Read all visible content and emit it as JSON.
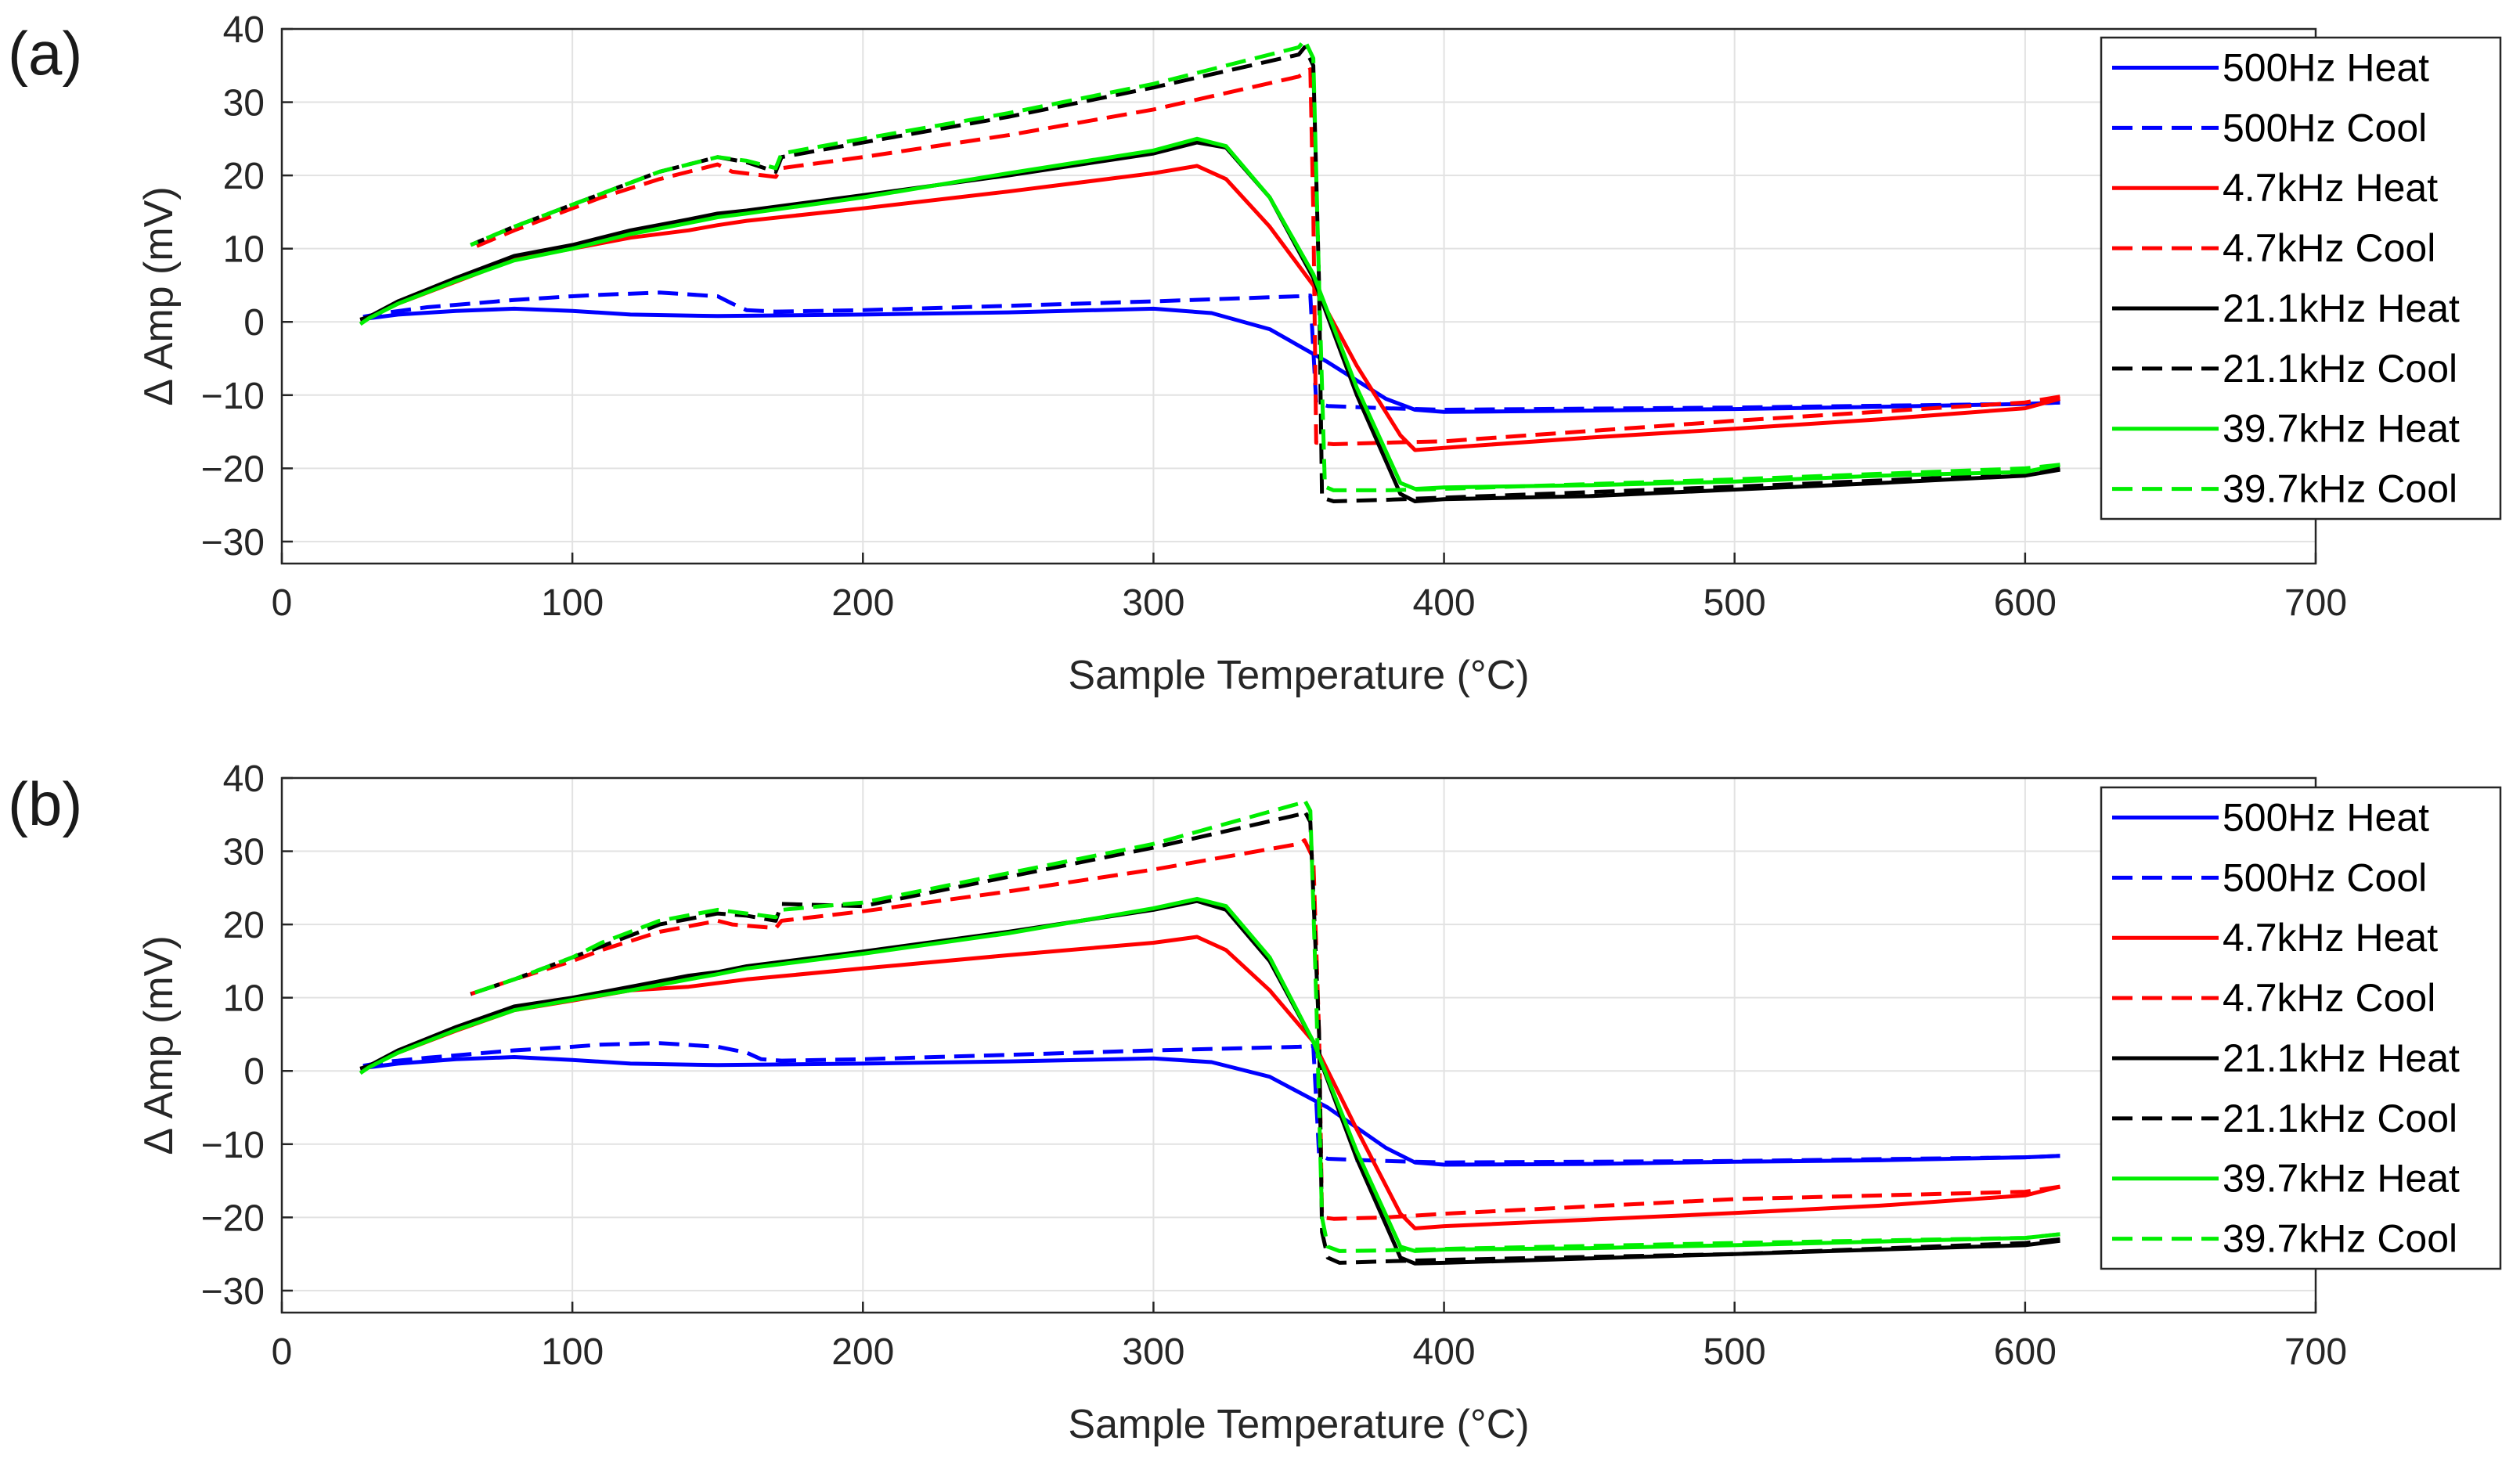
{
  "chart_data": [
    {
      "panel_label": "(a)",
      "type": "line",
      "xlabel": "Sample Temperature (°C)",
      "ylabel": "Δ Amp (mV)",
      "xlim": [
        0,
        700
      ],
      "ylim": [
        -33,
        40
      ],
      "xticks": [
        0,
        100,
        200,
        300,
        400,
        500,
        600,
        700
      ],
      "yticks": [
        -30,
        -20,
        -10,
        0,
        10,
        20,
        30,
        40
      ],
      "grid": true,
      "legend_position": "top-right",
      "series": [
        {
          "name": "500Hz Heat",
          "color": "#0000ff",
          "dash": "solid",
          "x": [
            27,
            30,
            40,
            60,
            80,
            100,
            120,
            150,
            200,
            250,
            300,
            320,
            340,
            360,
            380,
            390,
            400,
            450,
            500,
            550,
            600,
            612
          ],
          "y": [
            0.3,
            0.5,
            1.0,
            1.5,
            1.8,
            1.5,
            1.0,
            0.8,
            1.0,
            1.3,
            1.8,
            1.2,
            -1.0,
            -5.5,
            -10.5,
            -12.0,
            -12.3,
            -12.1,
            -11.9,
            -11.6,
            -11.2,
            -11.0
          ]
        },
        {
          "name": "500Hz Cool",
          "color": "#0000ff",
          "dash": "dashed",
          "x": [
            612,
            600,
            500,
            400,
            380,
            360,
            356,
            354,
            350,
            300,
            250,
            200,
            170,
            160,
            155,
            150,
            130,
            110,
            100,
            80,
            65,
            50,
            35,
            28
          ],
          "y": [
            -11.0,
            -11.2,
            -11.7,
            -12.0,
            -11.8,
            -11.5,
            -11.0,
            3.6,
            3.5,
            2.8,
            2.2,
            1.6,
            1.4,
            1.6,
            2.5,
            3.5,
            4.0,
            3.7,
            3.5,
            3.0,
            2.5,
            2.0,
            1.2,
            0.7
          ]
        },
        {
          "name": "4.7kHz Heat",
          "color": "#ff0000",
          "dash": "solid",
          "x": [
            27,
            30,
            40,
            60,
            80,
            100,
            120,
            140,
            150,
            160,
            200,
            250,
            300,
            315,
            325,
            340,
            355,
            370,
            385,
            390,
            400,
            450,
            500,
            550,
            600,
            612
          ],
          "y": [
            0.3,
            0.6,
            2.5,
            5.5,
            8.5,
            10.0,
            11.5,
            12.5,
            13.2,
            13.8,
            15.5,
            17.8,
            20.3,
            21.3,
            19.5,
            13.0,
            5.0,
            -6.0,
            -15.5,
            -17.5,
            -17.2,
            -15.8,
            -14.6,
            -13.3,
            -11.8,
            -10.5
          ]
        },
        {
          "name": "4.7kHz Cool",
          "color": "#ff0000",
          "dash": "dashed",
          "x": [
            612,
            600,
            500,
            400,
            380,
            362,
            356,
            355,
            354,
            350,
            300,
            250,
            200,
            172,
            170,
            155,
            150,
            130,
            110,
            100,
            80,
            65
          ],
          "y": [
            -10.2,
            -11.0,
            -13.5,
            -16.3,
            -16.5,
            -16.7,
            -16.5,
            15.0,
            34.5,
            33.5,
            29.0,
            25.5,
            22.5,
            21.0,
            19.8,
            20.5,
            21.5,
            19.5,
            17.0,
            15.5,
            12.5,
            10.0
          ]
        },
        {
          "name": "21.1kHz Heat",
          "color": "#000000",
          "dash": "solid",
          "x": [
            27,
            30,
            40,
            60,
            80,
            100,
            120,
            140,
            150,
            160,
            200,
            250,
            300,
            315,
            325,
            340,
            355,
            370,
            385,
            390,
            400,
            450,
            500,
            550,
            600,
            612
          ],
          "y": [
            0.3,
            0.7,
            2.8,
            6.0,
            9.0,
            10.5,
            12.5,
            14.0,
            14.8,
            15.2,
            17.3,
            20.0,
            23.0,
            24.5,
            23.8,
            17.0,
            6.0,
            -10.0,
            -23.5,
            -24.5,
            -24.2,
            -23.8,
            -22.9,
            -22.0,
            -21.0,
            -20.2
          ]
        },
        {
          "name": "21.1kHz Cool",
          "color": "#000000",
          "dash": "dashed",
          "x": [
            612,
            600,
            500,
            400,
            380,
            362,
            358,
            357,
            355,
            352,
            350,
            300,
            250,
            200,
            172,
            170,
            160,
            150,
            130,
            110,
            100,
            80,
            65
          ],
          "y": [
            -20.0,
            -20.8,
            -22.5,
            -24.0,
            -24.3,
            -24.5,
            -24.0,
            5.0,
            35.0,
            37.5,
            36.5,
            32.0,
            28.0,
            24.5,
            22.5,
            20.5,
            21.8,
            22.5,
            20.5,
            17.5,
            16.0,
            13.0,
            10.5
          ]
        },
        {
          "name": "39.7kHz Heat",
          "color": "#00ee00",
          "dash": "solid",
          "x": [
            27,
            30,
            40,
            60,
            80,
            100,
            120,
            140,
            150,
            160,
            200,
            250,
            300,
            315,
            325,
            340,
            355,
            370,
            385,
            390,
            400,
            450,
            500,
            550,
            600,
            612
          ],
          "y": [
            -0.3,
            0.5,
            2.5,
            5.6,
            8.4,
            10.0,
            12.0,
            13.5,
            14.3,
            14.8,
            17.0,
            20.3,
            23.4,
            25.0,
            24.0,
            17.0,
            6.5,
            -9.0,
            -22.0,
            -22.8,
            -22.6,
            -22.3,
            -21.8,
            -21.0,
            -20.5,
            -19.5
          ]
        },
        {
          "name": "39.7kHz Cool",
          "color": "#00ee00",
          "dash": "dashed",
          "x": [
            612,
            600,
            500,
            400,
            380,
            362,
            359,
            357,
            355,
            352,
            350,
            300,
            250,
            200,
            172,
            170,
            160,
            150,
            130,
            110,
            100,
            80,
            65
          ],
          "y": [
            -19.5,
            -20.0,
            -21.5,
            -22.8,
            -23.0,
            -23.0,
            -22.5,
            5.0,
            36.0,
            38.5,
            37.5,
            32.5,
            28.5,
            25.0,
            23.0,
            21.0,
            22.0,
            22.5,
            20.5,
            17.5,
            16.0,
            13.0,
            10.5
          ]
        }
      ]
    },
    {
      "panel_label": "(b)",
      "type": "line",
      "xlabel": "Sample Temperature (°C)",
      "ylabel": "Δ Amp (mV)",
      "xlim": [
        0,
        700
      ],
      "ylim": [
        -33,
        40
      ],
      "xticks": [
        0,
        100,
        200,
        300,
        400,
        500,
        600,
        700
      ],
      "yticks": [
        -30,
        -20,
        -10,
        0,
        10,
        20,
        30,
        40
      ],
      "grid": true,
      "legend_position": "top-right",
      "series": [
        {
          "name": "500Hz Heat",
          "color": "#0000ff",
          "dash": "solid",
          "x": [
            27,
            30,
            40,
            60,
            80,
            100,
            120,
            150,
            200,
            250,
            300,
            320,
            340,
            360,
            380,
            390,
            400,
            450,
            500,
            550,
            600,
            612
          ],
          "y": [
            0.3,
            0.5,
            1.0,
            1.6,
            1.9,
            1.5,
            1.0,
            0.8,
            1.0,
            1.3,
            1.7,
            1.2,
            -0.8,
            -5.0,
            -10.5,
            -12.5,
            -12.8,
            -12.7,
            -12.4,
            -12.2,
            -11.8,
            -11.6
          ]
        },
        {
          "name": "500Hz Cool",
          "color": "#0000ff",
          "dash": "dashed",
          "x": [
            612,
            600,
            500,
            400,
            380,
            360,
            357,
            355,
            350,
            300,
            250,
            200,
            172,
            165,
            160,
            150,
            130,
            110,
            100,
            80,
            65,
            50,
            35,
            28
          ],
          "y": [
            -11.6,
            -11.8,
            -12.3,
            -12.5,
            -12.3,
            -12.0,
            -11.5,
            3.4,
            3.3,
            2.8,
            2.2,
            1.6,
            1.4,
            1.6,
            2.5,
            3.3,
            3.8,
            3.6,
            3.3,
            2.8,
            2.3,
            1.8,
            1.2,
            0.7
          ]
        },
        {
          "name": "4.7kHz Heat",
          "color": "#ff0000",
          "dash": "solid",
          "x": [
            27,
            30,
            40,
            60,
            80,
            100,
            120,
            140,
            150,
            160,
            200,
            250,
            300,
            315,
            325,
            340,
            355,
            370,
            385,
            390,
            400,
            450,
            500,
            550,
            600,
            612
          ],
          "y": [
            0.3,
            0.6,
            2.5,
            5.5,
            8.3,
            9.6,
            11.0,
            11.5,
            12.0,
            12.5,
            14.0,
            15.8,
            17.5,
            18.3,
            16.5,
            11.0,
            4.0,
            -8.0,
            -19.5,
            -21.5,
            -21.2,
            -20.3,
            -19.4,
            -18.4,
            -17.0,
            -15.8
          ]
        },
        {
          "name": "4.7kHz Cool",
          "color": "#ff0000",
          "dash": "dashed",
          "x": [
            612,
            600,
            500,
            400,
            380,
            362,
            358,
            357,
            355,
            352,
            350,
            300,
            250,
            200,
            172,
            170,
            155,
            150,
            130,
            110,
            100,
            80,
            65
          ],
          "y": [
            -15.8,
            -16.5,
            -17.5,
            -19.5,
            -20.0,
            -20.2,
            -20.0,
            5.0,
            29.0,
            31.5,
            31.0,
            27.5,
            24.5,
            21.8,
            20.5,
            19.5,
            20.0,
            20.5,
            19.0,
            16.5,
            15.0,
            12.5,
            10.5
          ]
        },
        {
          "name": "21.1kHz Heat",
          "color": "#000000",
          "dash": "solid",
          "x": [
            27,
            30,
            40,
            60,
            80,
            100,
            120,
            140,
            150,
            160,
            200,
            250,
            300,
            315,
            325,
            340,
            355,
            370,
            385,
            390,
            400,
            450,
            500,
            550,
            600,
            612
          ],
          "y": [
            0.3,
            0.7,
            2.8,
            6.0,
            8.8,
            10.0,
            11.5,
            13.0,
            13.5,
            14.3,
            16.3,
            19.0,
            22.0,
            23.2,
            22.0,
            15.0,
            4.0,
            -12.0,
            -25.5,
            -26.3,
            -26.2,
            -25.6,
            -25.0,
            -24.4,
            -23.8,
            -23.2
          ]
        },
        {
          "name": "21.1kHz Cool",
          "color": "#000000",
          "dash": "dashed",
          "x": [
            612,
            600,
            500,
            400,
            380,
            364,
            360,
            358,
            357,
            354,
            352,
            350,
            300,
            250,
            200,
            172,
            170,
            160,
            150,
            130,
            110,
            100,
            80,
            65
          ],
          "y": [
            -23.0,
            -23.5,
            -25.0,
            -25.8,
            -26.0,
            -26.2,
            -25.5,
            -22.0,
            5.0,
            34.0,
            35.5,
            35.0,
            30.5,
            26.5,
            22.5,
            22.8,
            20.5,
            21.2,
            21.5,
            20.0,
            17.0,
            15.5,
            12.5,
            10.5
          ]
        },
        {
          "name": "39.7kHz Heat",
          "color": "#00ee00",
          "dash": "solid",
          "x": [
            27,
            30,
            40,
            60,
            80,
            100,
            120,
            140,
            150,
            160,
            200,
            250,
            300,
            315,
            325,
            340,
            355,
            370,
            385,
            390,
            400,
            450,
            500,
            550,
            600,
            612
          ],
          "y": [
            -0.3,
            0.5,
            2.5,
            5.6,
            8.3,
            9.7,
            11.0,
            12.5,
            13.2,
            14.0,
            16.0,
            18.8,
            22.2,
            23.5,
            22.5,
            15.5,
            4.0,
            -11.0,
            -24.0,
            -24.6,
            -24.4,
            -24.2,
            -23.8,
            -23.3,
            -22.8,
            -22.3
          ]
        },
        {
          "name": "39.7kHz Cool",
          "color": "#00ee00",
          "dash": "dashed",
          "x": [
            612,
            600,
            500,
            400,
            380,
            364,
            360,
            358,
            356,
            354,
            352,
            350,
            300,
            250,
            200,
            172,
            170,
            160,
            150,
            130,
            110,
            100,
            80,
            65
          ],
          "y": [
            -22.3,
            -22.8,
            -23.5,
            -24.3,
            -24.5,
            -24.6,
            -24.0,
            -20.0,
            10.0,
            35.5,
            37.0,
            36.5,
            31.0,
            27.0,
            23.0,
            22.0,
            21.0,
            21.5,
            22.0,
            20.5,
            17.5,
            15.5,
            12.5,
            10.5
          ]
        }
      ]
    }
  ]
}
